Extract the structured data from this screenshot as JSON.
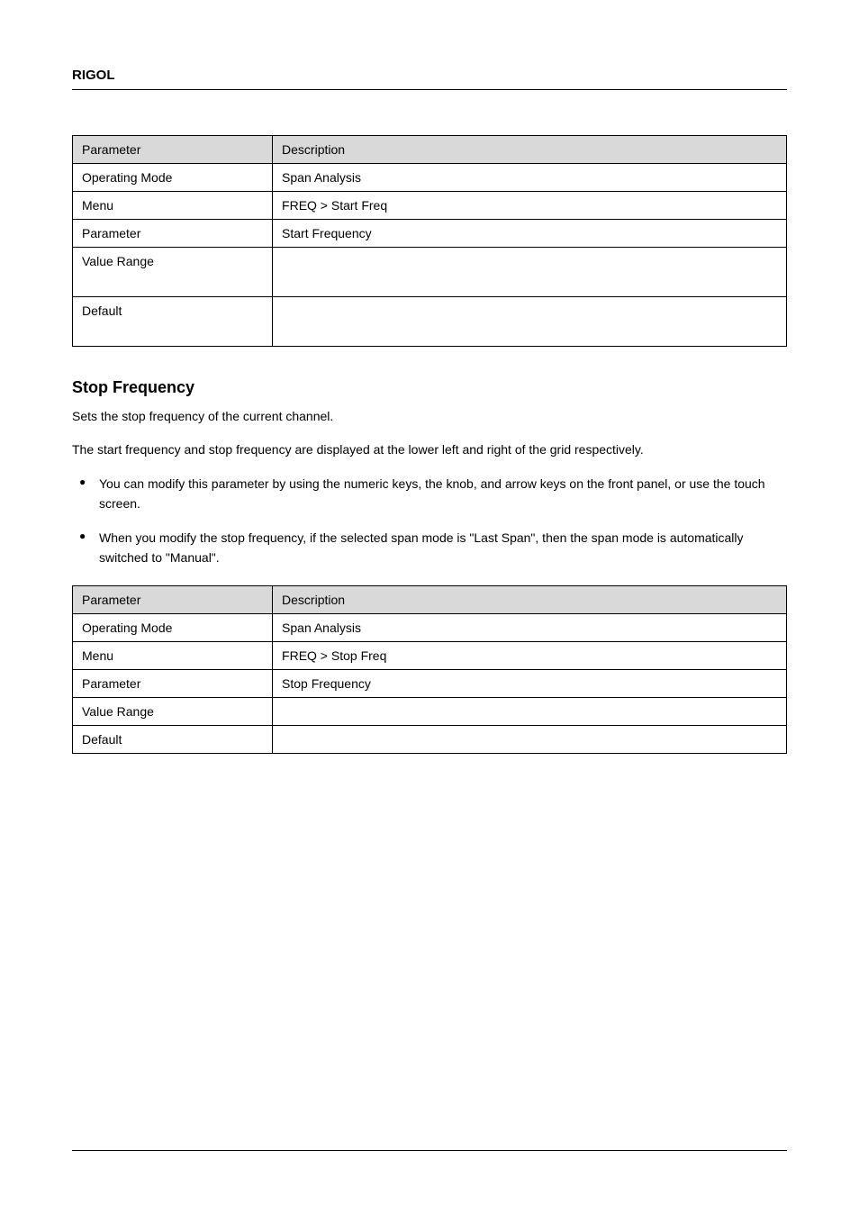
{
  "header": {
    "brand": "RIGOL"
  },
  "table1": {
    "header": {
      "col1": "Parameter",
      "col2": "Description"
    },
    "rows": [
      {
        "col1": "Operating Mode",
        "col2": "Span Analysis"
      },
      {
        "col1": "Menu",
        "col2": "FREQ > Start Freq"
      },
      {
        "col1": "Parameter",
        "col2": "Start Frequency"
      },
      {
        "col1": "Value Range",
        "col2": "",
        "tall": true
      },
      {
        "col1": "Default",
        "col2": "",
        "tall": true
      }
    ]
  },
  "section1": {
    "title": "Stop Frequency",
    "intro": "Sets the stop frequency of the current channel.",
    "desc": "The start frequency and stop frequency are displayed at the lower left and right of the grid respectively."
  },
  "bullets": [
    "You can modify this parameter by using the numeric keys, the knob, and arrow keys on the front panel, or use the touch screen.",
    "When you modify the stop frequency, if the selected span mode is \"Last Span\", then the span mode is automatically switched to \"Manual\"."
  ],
  "table2": {
    "header": {
      "col1": "Parameter",
      "col2": "Description"
    },
    "rows": [
      {
        "col1": "Operating Mode",
        "col2": "Span Analysis"
      },
      {
        "col1": "Menu",
        "col2": "FREQ > Stop Freq"
      },
      {
        "col1": "Parameter",
        "col2": "Stop Frequency"
      },
      {
        "col1": "Value Range",
        "col2": ""
      },
      {
        "col1": "Default",
        "col2": ""
      }
    ]
  },
  "footer": {
    "left": "",
    "right": ""
  },
  "styles": {
    "background_color": "#ffffff",
    "border_color": "#000000",
    "header_bg_color": "#d9d9d9",
    "font_family": "Arial",
    "body_font_size": 14,
    "title_font_size": 18,
    "header_font_size": 15
  }
}
